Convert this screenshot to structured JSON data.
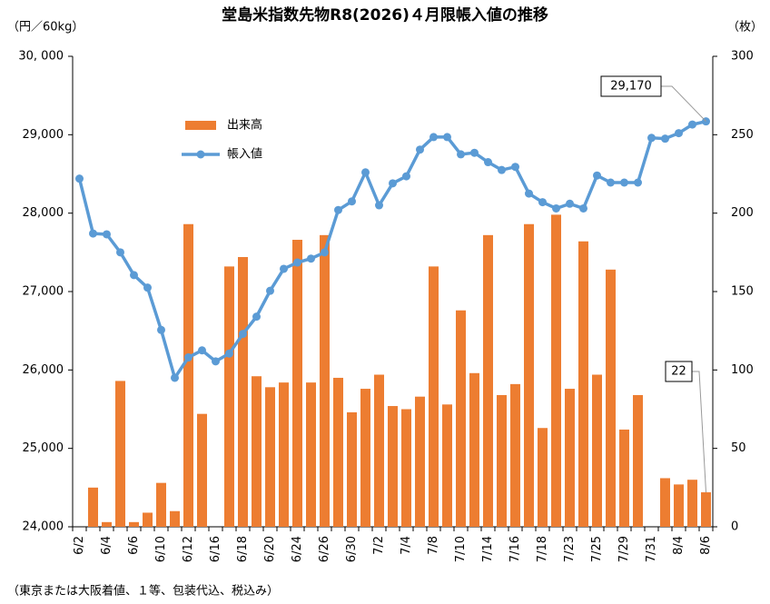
{
  "chart_data": {
    "type": "bar",
    "title": "堂島米指数先物R8(2026)４月限帳入値の推移",
    "y_label": "（円／60kg）",
    "y2_label": "（枚）",
    "footnote": "（東京または大阪着値、１等、包装代込、税込み）",
    "categories": [
      "6/2",
      null,
      "6/4",
      null,
      "6/6",
      null,
      "6/10",
      null,
      "6/12",
      null,
      "6/16",
      null,
      "6/18",
      null,
      "6/20",
      null,
      "6/24",
      null,
      "6/26",
      null,
      "6/30",
      null,
      "7/2",
      null,
      "7/4",
      null,
      "7/8",
      null,
      "7/10",
      null,
      "7/14",
      null,
      "7/16",
      null,
      "7/18",
      null,
      "7/23",
      null,
      "7/25",
      null,
      "7/29",
      null,
      "7/31",
      null,
      "8/4",
      null,
      "8/6"
    ],
    "series": [
      {
        "name": "出来高",
        "type": "bar",
        "axis": "y2",
        "color": "#ed7d31",
        "values": [
          0,
          25,
          3,
          93,
          3,
          9,
          28,
          10,
          193,
          72,
          0,
          166,
          172,
          96,
          89,
          92,
          183,
          92,
          186,
          95,
          73,
          88,
          97,
          77,
          75,
          83,
          166,
          78,
          138,
          98,
          186,
          84,
          91,
          193,
          63,
          199,
          88,
          182,
          97,
          164,
          62,
          84,
          0,
          31,
          27,
          30,
          22
        ]
      },
      {
        "name": "帳入値",
        "type": "line",
        "color": "#5b9bd5",
        "values": [
          28440,
          27740,
          27730,
          27500,
          27210,
          27050,
          26510,
          25900,
          26160,
          26250,
          26110,
          26210,
          26460,
          26680,
          27010,
          27290,
          27370,
          27420,
          27500,
          28040,
          28150,
          28520,
          28100,
          28380,
          28470,
          28810,
          28970,
          28970,
          28750,
          28770,
          28650,
          28550,
          28590,
          28250,
          28140,
          28060,
          28120,
          28060,
          28480,
          28390,
          28390,
          28390,
          28960,
          28950,
          29020,
          29130,
          29170
        ],
        "value_labels": [
          null,
          null,
          null,
          null,
          null,
          null,
          null,
          null,
          null,
          null,
          null,
          null,
          null,
          null,
          null,
          null,
          null,
          null,
          null,
          null,
          null,
          null,
          null,
          null,
          null,
          null,
          null,
          null,
          null,
          null,
          null,
          null,
          null,
          null,
          null,
          null,
          null,
          null,
          null,
          null,
          null,
          null,
          null,
          null,
          null,
          null,
          "29,170"
        ]
      }
    ],
    "ylim": [
      24000,
      30000
    ],
    "yticks": [
      {
        "value": 24000,
        "label": "24,000"
      },
      {
        "value": 25000,
        "label": "25,000"
      },
      {
        "value": 26000,
        "label": "26,000"
      },
      {
        "value": 27000,
        "label": "27,000"
      },
      {
        "value": 28000,
        "label": "28,000"
      },
      {
        "value": 29000,
        "label": "29,000"
      },
      {
        "value": 30000,
        "label": "30, 000"
      }
    ],
    "y2lim": [
      0,
      300
    ],
    "y2ticks": [
      0,
      50,
      100,
      150,
      200,
      250,
      300
    ],
    "grid": false
  }
}
